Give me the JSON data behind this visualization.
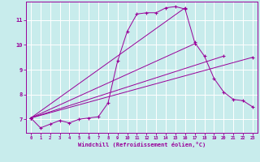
{
  "background_color": "#c8ecec",
  "line_color": "#990099",
  "grid_color": "#ffffff",
  "xlabel": "Windchill (Refroidissement éolien,°C)",
  "xlabel_color": "#990099",
  "tick_color": "#990099",
  "ylabel_ticks": [
    7,
    8,
    9,
    10,
    11
  ],
  "xlim": [
    -0.5,
    23.5
  ],
  "ylim": [
    6.45,
    11.75
  ],
  "line1_x": [
    0,
    1,
    2,
    3,
    4,
    5,
    6,
    7,
    8,
    9,
    10,
    11,
    12,
    13,
    14,
    15,
    16,
    17,
    18,
    19,
    20,
    21,
    22,
    23
  ],
  "line1_y": [
    7.05,
    6.65,
    6.8,
    6.95,
    6.85,
    7.0,
    7.05,
    7.1,
    7.65,
    9.35,
    10.55,
    11.25,
    11.3,
    11.3,
    11.5,
    11.55,
    11.45,
    10.1,
    9.55,
    8.65,
    8.1,
    7.8,
    7.75,
    7.5
  ],
  "line2_x": [
    0,
    23
  ],
  "line2_y": [
    7.05,
    9.5
  ],
  "line3_x": [
    0,
    20
  ],
  "line3_y": [
    7.05,
    9.55
  ],
  "line4_x": [
    0,
    17
  ],
  "line4_y": [
    7.05,
    10.05
  ],
  "line5_x": [
    0,
    16
  ],
  "line5_y": [
    7.05,
    11.5
  ]
}
